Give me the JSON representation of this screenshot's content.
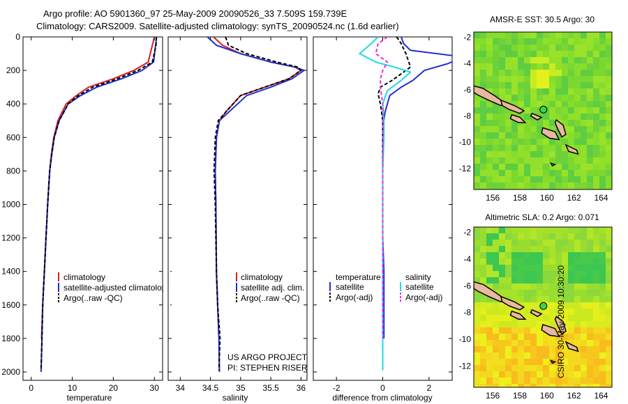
{
  "header": {
    "line1": "Argo profile: AO 5901360_97 25-May-2009 20090526_33 7.509S 159.739E",
    "line2": "Climatology: CARS2009. Satellite-adjusted climatology: synTS_20090524.nc (1.6d earlier)"
  },
  "side_caption": "CSIRO 30-May-2009 10:30:20",
  "credit": {
    "line1": "US ARGO PROJECT",
    "line2": "PI: STEPHEN RISER"
  },
  "colors": {
    "climatology": "#d42020",
    "satellite": "#1f2fd0",
    "argo": "#000000",
    "sal_satellite": "#22d8e6",
    "sal_argo": "#e030e0"
  },
  "chart_data": [
    {
      "type": "line",
      "id": "temperature",
      "xlabel": "temperature",
      "ylabel": "",
      "xlim": [
        -2,
        32
      ],
      "ylim": [
        2050,
        0
      ],
      "xticks": [
        0,
        10,
        20,
        30
      ],
      "yticks": [
        0,
        200,
        400,
        600,
        800,
        1000,
        1200,
        1400,
        1600,
        1800,
        2000
      ],
      "legend": [
        "climatology",
        "satellite-adjusted climatology",
        "Argo(..raw -QC)"
      ],
      "series": [
        {
          "name": "climatology",
          "color": "#d42020",
          "x": [
            30.0,
            29.5,
            28.5,
            25.0,
            20.0,
            14.0,
            11.0,
            8.5,
            6.5,
            5.5,
            4.9,
            4.5,
            4.0,
            3.6,
            3.2,
            2.8,
            2.5
          ],
          "y": [
            0,
            50,
            150,
            200,
            250,
            300,
            350,
            400,
            500,
            600,
            700,
            800,
            1000,
            1200,
            1400,
            1600,
            1800
          ]
        },
        {
          "name": "satellite-adjusted climatology",
          "color": "#1f2fd0",
          "x": [
            30.5,
            30.3,
            29.8,
            27.0,
            22.0,
            16.0,
            12.0,
            9.0,
            6.8,
            5.6,
            5.0,
            4.5,
            4.0,
            3.6,
            3.2,
            2.8,
            2.6,
            2.4
          ],
          "y": [
            0,
            50,
            150,
            200,
            250,
            300,
            350,
            400,
            500,
            600,
            700,
            800,
            1000,
            1200,
            1400,
            1600,
            1800,
            2000
          ]
        },
        {
          "name": "Argo(..raw -QC)",
          "color": "#000000",
          "x": [
            30.5,
            30.4,
            29.5,
            26.0,
            21.0,
            15.0,
            11.5,
            9.0,
            6.8,
            5.6,
            5.0,
            4.5,
            4.0,
            3.6,
            3.2,
            2.8,
            2.6,
            2.4
          ],
          "y": [
            0,
            50,
            150,
            200,
            250,
            300,
            350,
            400,
            500,
            600,
            700,
            800,
            1000,
            1200,
            1400,
            1600,
            1800,
            1990
          ]
        }
      ]
    },
    {
      "type": "line",
      "id": "salinity",
      "xlabel": "salinity",
      "ylabel": "",
      "xlim": [
        33.8,
        36.1
      ],
      "ylim": [
        2050,
        0
      ],
      "xticks": [
        34,
        34.5,
        35,
        35.5,
        36
      ],
      "xticklabels": [
        "34",
        "34.5",
        "35",
        "35.5",
        "36"
      ],
      "legend": [
        "climatology",
        "satellite adj. clim.",
        "Argo(..raw -QC)"
      ],
      "series": [
        {
          "name": "climatology",
          "color": "#d42020",
          "x": [
            34.55,
            34.7,
            35.0,
            35.5,
            35.9,
            36.0,
            35.8,
            35.4,
            35.0,
            34.75,
            34.65,
            34.6,
            34.58,
            34.59,
            34.6,
            34.62,
            34.64
          ],
          "y": [
            0,
            50,
            100,
            150,
            180,
            200,
            250,
            300,
            350,
            450,
            500,
            600,
            800,
            1000,
            1400,
            1600,
            1800
          ]
        },
        {
          "name": "satellite adj. clim.",
          "color": "#1f2fd0",
          "x": [
            34.45,
            34.6,
            35.0,
            35.5,
            35.9,
            36.05,
            35.85,
            35.5,
            35.1,
            34.8,
            34.65,
            34.6,
            34.58,
            34.59,
            34.6,
            34.62,
            34.64,
            34.65
          ],
          "y": [
            0,
            50,
            100,
            150,
            180,
            200,
            250,
            300,
            350,
            450,
            500,
            600,
            800,
            1000,
            1400,
            1600,
            1800,
            2000
          ]
        },
        {
          "name": "Argo(..raw -QC)",
          "color": "#000000",
          "x": [
            34.75,
            34.8,
            35.1,
            35.6,
            35.95,
            36.0,
            35.8,
            35.4,
            35.0,
            34.75,
            34.63,
            34.58,
            34.56,
            34.58,
            34.6,
            34.62,
            34.66,
            34.64
          ],
          "y": [
            0,
            50,
            100,
            150,
            180,
            200,
            250,
            300,
            350,
            450,
            500,
            600,
            800,
            1000,
            1400,
            1600,
            1800,
            1990
          ]
        }
      ]
    },
    {
      "type": "line",
      "id": "difference",
      "xlabel": "difference from climatology",
      "ylabel": "",
      "xlim": [
        -3,
        3
      ],
      "ylim": [
        2050,
        0
      ],
      "xticks": [
        -2,
        0,
        2
      ],
      "legend_temperature_title": "temperature",
      "legend_salinity_title": "salinity",
      "legend_temperature": [
        "satellite",
        "Argo(-adj)"
      ],
      "legend_salinity": [
        "satellite",
        "Argo(-adj)"
      ],
      "series": [
        {
          "name": "temperature satellite",
          "color": "#1f2fd0",
          "x": [
            0.8,
            0.9,
            1.2,
            3.5,
            2.8,
            1.8,
            1.3,
            0.8,
            0.3,
            0.1,
            0.0,
            0.0,
            0.0,
            0.0,
            0.05,
            0.05,
            0.05
          ],
          "y": [
            0,
            40,
            80,
            120,
            160,
            200,
            260,
            300,
            350,
            450,
            550,
            800,
            1000,
            1200,
            1400,
            1600,
            1800
          ]
        },
        {
          "name": "temperature Argo(-adj)",
          "color": "#000000",
          "x": [
            0.6,
            0.8,
            1.0,
            1.2,
            0.8,
            0.4,
            -0.1,
            -0.2,
            -0.1,
            0.0,
            0.0,
            0.0,
            0.0,
            0.0,
            0.0,
            0.0
          ],
          "y": [
            0,
            40,
            100,
            180,
            220,
            260,
            300,
            340,
            400,
            500,
            600,
            800,
            1000,
            1400,
            1600,
            1800
          ]
        },
        {
          "name": "salinity satellite",
          "color": "#22d8e6",
          "x": [
            -0.2,
            -0.5,
            -1.0,
            -0.3,
            0.5,
            1.2,
            0.8,
            0.2,
            0.0,
            0.05,
            0.05,
            0.0,
            0.0,
            0.0,
            0.0,
            0.0
          ],
          "y": [
            0,
            40,
            100,
            150,
            180,
            210,
            260,
            320,
            400,
            500,
            600,
            800,
            1000,
            1400,
            1600,
            1990
          ]
        },
        {
          "name": "salinity Argo(-adj)",
          "color": "#e030e0",
          "x": [
            0.2,
            -0.2,
            -0.3,
            0.2,
            0.0,
            -0.1,
            -0.1,
            -0.05,
            0.0,
            0.0,
            0.0,
            0.0,
            0.0,
            0.0,
            0.0
          ],
          "y": [
            0,
            40,
            100,
            150,
            200,
            250,
            300,
            350,
            400,
            500,
            700,
            1000,
            1400,
            1600,
            1800
          ]
        }
      ]
    },
    {
      "type": "heatmap",
      "id": "sst_map",
      "title": "AMSR-E SST: 30.5  Argo: 30",
      "xlim": [
        154.6,
        164.8
      ],
      "ylim": [
        -13.6,
        -1.6
      ],
      "xticks": [
        156,
        158,
        160,
        162,
        164
      ],
      "yticks": [
        -2,
        -4,
        -6,
        -8,
        -10,
        -12
      ],
      "marker": {
        "lon": 159.739,
        "lat": -7.509
      }
    },
    {
      "type": "heatmap",
      "id": "sla_map",
      "title": "Altimetric SLA: 0.2  Argo: 0.071",
      "xlim": [
        154.6,
        164.8
      ],
      "ylim": [
        -13.6,
        -1.6
      ],
      "xticks": [
        156,
        158,
        160,
        162,
        164
      ],
      "yticks": [
        -2,
        -4,
        -6,
        -8,
        -10,
        -12
      ],
      "marker": {
        "lon": 159.739,
        "lat": -7.509
      }
    }
  ]
}
